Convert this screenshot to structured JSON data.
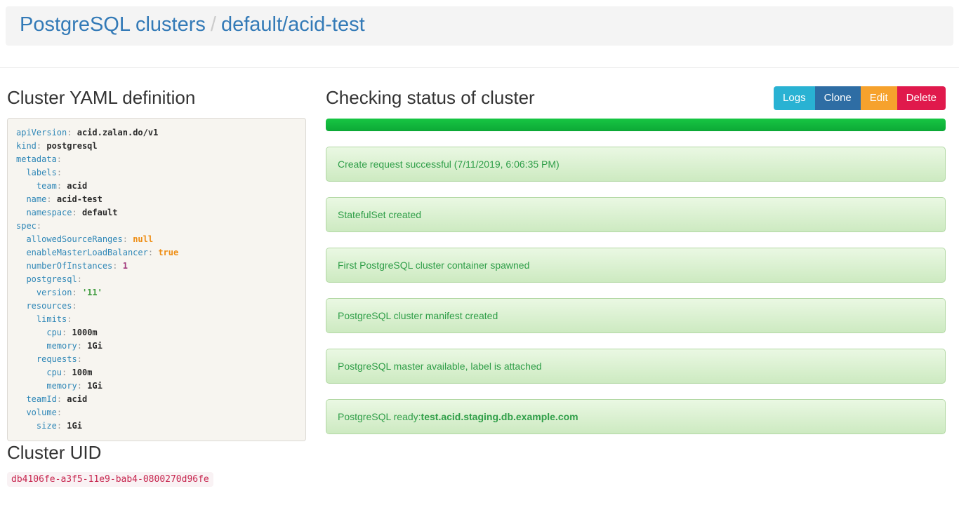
{
  "header": {
    "breadcrumb_root": "PostgreSQL clusters",
    "breadcrumb_separator": "/",
    "breadcrumb_current": "default/acid-test"
  },
  "yaml_section": {
    "title": "Cluster YAML definition",
    "lines": [
      {
        "indent": 0,
        "key": "apiVersion",
        "value": "acid.zalan.do/v1",
        "vtype": "plain"
      },
      {
        "indent": 0,
        "key": "kind",
        "value": "postgresql",
        "vtype": "plain"
      },
      {
        "indent": 0,
        "key": "metadata"
      },
      {
        "indent": 1,
        "key": "labels"
      },
      {
        "indent": 2,
        "key": "team",
        "value": "acid",
        "vtype": "plain"
      },
      {
        "indent": 1,
        "key": "name",
        "value": "acid-test",
        "vtype": "plain"
      },
      {
        "indent": 1,
        "key": "namespace",
        "value": "default",
        "vtype": "plain"
      },
      {
        "indent": 0,
        "key": "spec"
      },
      {
        "indent": 1,
        "key": "allowedSourceRanges",
        "value": "null",
        "vtype": "literal"
      },
      {
        "indent": 1,
        "key": "enableMasterLoadBalancer",
        "value": "true",
        "vtype": "literal"
      },
      {
        "indent": 1,
        "key": "numberOfInstances",
        "value": "1",
        "vtype": "number"
      },
      {
        "indent": 1,
        "key": "postgresql"
      },
      {
        "indent": 2,
        "key": "version",
        "value": "'11'",
        "vtype": "string"
      },
      {
        "indent": 1,
        "key": "resources"
      },
      {
        "indent": 2,
        "key": "limits"
      },
      {
        "indent": 3,
        "key": "cpu",
        "value": "1000m",
        "vtype": "plain"
      },
      {
        "indent": 3,
        "key": "memory",
        "value": "1Gi",
        "vtype": "plain"
      },
      {
        "indent": 2,
        "key": "requests"
      },
      {
        "indent": 3,
        "key": "cpu",
        "value": "100m",
        "vtype": "plain"
      },
      {
        "indent": 3,
        "key": "memory",
        "value": "1Gi",
        "vtype": "plain"
      },
      {
        "indent": 1,
        "key": "teamId",
        "value": "acid",
        "vtype": "plain"
      },
      {
        "indent": 1,
        "key": "volume"
      },
      {
        "indent": 2,
        "key": "size",
        "value": "1Gi",
        "vtype": "plain"
      }
    ]
  },
  "status_section": {
    "title": "Checking status of cluster",
    "buttons": [
      {
        "label": "Logs",
        "color": "#29b2d3"
      },
      {
        "label": "Clone",
        "color": "#2e6da4"
      },
      {
        "label": "Edit",
        "color": "#f6a22d"
      },
      {
        "label": "Delete",
        "color": "#e0194c"
      }
    ],
    "progress_percent": 100,
    "progress_color": "#12bd3d",
    "messages": [
      {
        "segments": [
          {
            "text": "Create request successful (7/11/2019, 6:06:35 PM)"
          }
        ]
      },
      {
        "segments": [
          {
            "text": "StatefulSet created"
          }
        ]
      },
      {
        "segments": [
          {
            "text": "First PostgreSQL cluster container spawned"
          }
        ]
      },
      {
        "segments": [
          {
            "text": "PostgreSQL cluster manifest created"
          }
        ]
      },
      {
        "segments": [
          {
            "text": "PostgreSQL master available, label is attached"
          }
        ]
      },
      {
        "segments": [
          {
            "text": "PostgreSQL ready: "
          },
          {
            "text": "test.acid.staging.db.example.com",
            "bold": true
          }
        ]
      }
    ]
  },
  "uid_section": {
    "title": "Cluster UID",
    "uid": "db4106fe-a3f5-11e9-bab4-0800270d96fe"
  },
  "colors": {
    "breadcrumb_link": "#337ab7",
    "alert_text": "#2f9e48",
    "uid_code_text": "#c7254e",
    "yaml_key": "#2f87b7"
  }
}
